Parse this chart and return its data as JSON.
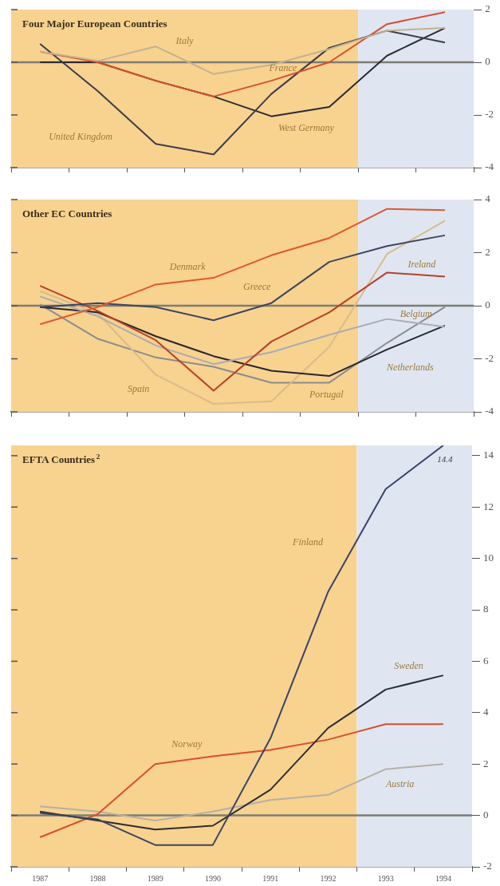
{
  "chart_data": [
    {
      "type": "line",
      "title": "Four Major European Countries",
      "x": [
        1987,
        1988,
        1989,
        1990,
        1991,
        1992,
        1993,
        1994
      ],
      "xlim": [
        1986.5,
        1994.5
      ],
      "xticks": [
        {
          "value": 1986.5,
          "label": null
        },
        {
          "value": 1987.5,
          "label": null
        },
        {
          "value": 1988.5,
          "label": null
        },
        {
          "value": 1989.5,
          "label": null
        },
        {
          "value": 1990.5,
          "label": null
        },
        {
          "value": 1991.5,
          "label": null
        },
        {
          "value": 1992.5,
          "label": null
        },
        {
          "value": 1993.5,
          "label": null
        },
        {
          "value": 1994.5,
          "label": null
        }
      ],
      "ylim": [
        -4,
        2
      ],
      "yticks": [
        -4,
        -2,
        0,
        2
      ],
      "tick_labels": "y",
      "series": [
        {
          "name": "Italy",
          "color": "#c2b294",
          "values": [
            0.4,
            0.05,
            0.6,
            -0.45,
            -0.1,
            0.5,
            1.2,
            1.3
          ]
        },
        {
          "name": "France",
          "color": "#d9502a",
          "values": [
            0.4,
            0,
            -0.7,
            -1.3,
            -0.7,
            0,
            1.45,
            1.9
          ]
        },
        {
          "name": "United Kingdom",
          "color": "#3c3c4c",
          "values": [
            0.7,
            -1.1,
            -3.1,
            -3.5,
            -1.2,
            0.55,
            1.2,
            0.75
          ]
        },
        {
          "name": "West Germany",
          "color": "#2a2a34",
          "values": [
            0,
            0,
            -0.7,
            -1.3,
            -2.05,
            -1.7,
            0.25,
            1.3
          ]
        }
      ],
      "bands": [
        {
          "axis": "x",
          "from": 1986.5,
          "to": 1992.5,
          "color": "#f8d28f"
        },
        {
          "axis": "x",
          "from": 1992.5,
          "to": 1994.5,
          "color": "#dfe6f2"
        }
      ],
      "ref_lines": [
        {
          "axis": "y",
          "value": 0,
          "color": "#7d7d74"
        }
      ]
    },
    {
      "type": "line",
      "title": "Other EC Countries",
      "x": [
        1987,
        1988,
        1989,
        1990,
        1991,
        1992,
        1993,
        1994
      ],
      "xlim": [
        1986.5,
        1994.5
      ],
      "xticks": [
        {
          "value": 1986.5,
          "label": null
        },
        {
          "value": 1987.5,
          "label": null
        },
        {
          "value": 1988.5,
          "label": null
        },
        {
          "value": 1989.5,
          "label": null
        },
        {
          "value": 1990.5,
          "label": null
        },
        {
          "value": 1991.5,
          "label": null
        },
        {
          "value": 1992.5,
          "label": null
        },
        {
          "value": 1993.5,
          "label": null
        },
        {
          "value": 1994.5,
          "label": null
        }
      ],
      "ylim": [
        -4,
        4
      ],
      "yticks": [
        -4,
        -2,
        0,
        2,
        4
      ],
      "tick_labels": "y",
      "series": [
        {
          "name": "Denmark",
          "color": "#e0572a",
          "values": [
            -0.7,
            -0.05,
            0.8,
            1.05,
            1.9,
            2.55,
            3.65,
            3.6
          ]
        },
        {
          "name": "Greece",
          "color": "#3d4660",
          "values": [
            -0.05,
            0.1,
            -0.05,
            -0.55,
            0.1,
            1.65,
            2.25,
            2.65
          ]
        },
        {
          "name": "Ireland",
          "color": "#b8402a",
          "values": [
            0.75,
            -0.2,
            -1.3,
            -3.2,
            -1.35,
            -0.25,
            1.25,
            1.1
          ]
        },
        {
          "name": "Belgium",
          "color": "#a9acb4",
          "values": [
            0.35,
            -0.4,
            -1.5,
            -2.2,
            -1.75,
            -1.1,
            -0.5,
            -0.8
          ]
        },
        {
          "name": "Netherlands",
          "color": "#262630",
          "values": [
            -0.05,
            -0.25,
            -1.15,
            -1.9,
            -2.45,
            -2.65,
            -1.65,
            -0.75
          ]
        },
        {
          "name": "Spain",
          "color": "#d8bc8a",
          "values": [
            0.55,
            -0.3,
            -2.6,
            -3.7,
            -3.6,
            -1.55,
            1.95,
            3.2
          ]
        },
        {
          "name": "Portugal",
          "color": "#8a8c92",
          "values": [
            0.05,
            -1.25,
            -1.95,
            -2.3,
            -2.9,
            -2.9,
            -1.4,
            -0.05
          ]
        }
      ],
      "bands": [
        {
          "axis": "x",
          "from": 1986.5,
          "to": 1992.5,
          "color": "#f8d28f"
        },
        {
          "axis": "x",
          "from": 1992.5,
          "to": 1994.5,
          "color": "#dfe6f2"
        }
      ],
      "ref_lines": [
        {
          "axis": "y",
          "value": 0,
          "color": "#7d7d74"
        }
      ]
    },
    {
      "type": "line",
      "title": "EFTA Countries$^{2}$",
      "x": [
        1987,
        1988,
        1989,
        1990,
        1991,
        1992,
        1993,
        1994
      ],
      "xlim": [
        1986.5,
        1994.5
      ],
      "xticks": [
        {
          "value": 1986.5,
          "label": null
        },
        1987,
        {
          "value": 1987.5,
          "label": null
        },
        1988,
        {
          "value": 1988.5,
          "label": null
        },
        1989,
        {
          "value": 1989.5,
          "label": null
        },
        1990,
        {
          "value": 1990.5,
          "label": null
        },
        1991,
        {
          "value": 1991.5,
          "label": null
        },
        1992,
        {
          "value": 1992.5,
          "label": null
        },
        1993,
        {
          "value": 1993.5,
          "label": null
        },
        1994,
        {
          "value": 1994.5,
          "label": null
        }
      ],
      "ylim": [
        -2,
        14.4
      ],
      "yticks": [
        -2,
        0,
        2,
        4,
        6,
        8,
        10,
        12,
        14
      ],
      "series": [
        {
          "name": "Finland",
          "color": "#3a4468",
          "values": [
            0.1,
            -0.15,
            -1.15,
            -1.15,
            3.0,
            8.7,
            12.7,
            14.4
          ]
        },
        {
          "name": "Sweden",
          "color": "#2c2c38",
          "values": [
            0.15,
            -0.2,
            -0.55,
            -0.4,
            1.0,
            3.4,
            4.9,
            5.45
          ]
        },
        {
          "name": "Norway",
          "color": "#d9502a",
          "values": [
            -0.85,
            0.05,
            2.0,
            2.3,
            2.55,
            2.95,
            3.55,
            3.55
          ]
        },
        {
          "name": "Austria",
          "color": "#b5b0a6",
          "values": [
            0.35,
            0.15,
            -0.2,
            0.15,
            0.6,
            0.8,
            1.8,
            2.0
          ]
        }
      ],
      "annotations": [
        {
          "text": "14.4",
          "x": 1994,
          "y": 14.4
        }
      ],
      "bands": [
        {
          "axis": "x",
          "from": 1986.5,
          "to": 1992.5,
          "color": "#f8d28f"
        },
        {
          "axis": "x",
          "from": 1992.5,
          "to": 1994.5,
          "color": "#dfe6f2"
        }
      ],
      "ref_lines": [
        {
          "axis": "y",
          "value": 0,
          "color": "#7d7d74"
        }
      ]
    }
  ]
}
